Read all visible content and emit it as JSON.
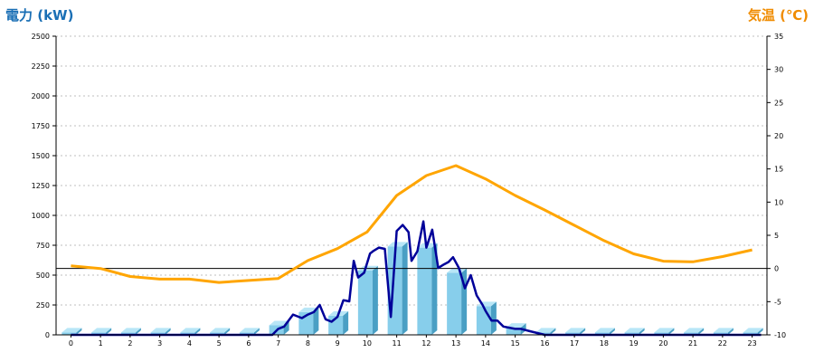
{
  "chart_data": {
    "type": "bar",
    "title": "",
    "ylabel_left": "電力 (kW)",
    "ylabel_right": "気温 (℃)",
    "xlabel": "",
    "categories": [
      "0",
      "1",
      "2",
      "3",
      "4",
      "5",
      "6",
      "7",
      "8",
      "9",
      "10",
      "11",
      "12",
      "13",
      "14",
      "15",
      "16",
      "17",
      "18",
      "19",
      "20",
      "21",
      "22",
      "23"
    ],
    "y_left": {
      "min": 0,
      "max": 2500,
      "ticks": [
        "0",
        "250",
        "500",
        "750",
        "1000",
        "1250",
        "1500",
        "1750",
        "2000",
        "2250",
        "2500"
      ]
    },
    "y_right": {
      "min": -10,
      "max": 35,
      "ticks": [
        "-10",
        "-5",
        "0",
        "5",
        "10",
        "15",
        "20",
        "25",
        "30",
        "35"
      ]
    },
    "grid": "horizontal-dashed",
    "series": [
      {
        "type": "bar",
        "axis": "left",
        "color": "#87ceeb",
        "values": [
          20,
          20,
          20,
          20,
          20,
          20,
          20,
          80,
          190,
          160,
          540,
          740,
          730,
          520,
          240,
          60,
          20,
          20,
          20,
          20,
          20,
          20,
          20,
          20
        ]
      },
      {
        "type": "line",
        "axis": "left",
        "color": "#000099",
        "x": [
          0,
          1,
          2,
          3,
          4,
          5,
          6,
          6.5,
          6.8,
          7,
          7.2,
          7.5,
          7.8,
          8,
          8.2,
          8.4,
          8.6,
          8.8,
          9,
          9.2,
          9.4,
          9.55,
          9.7,
          9.9,
          10.1,
          10.2,
          10.4,
          10.6,
          10.8,
          11,
          11.2,
          11.4,
          11.5,
          11.7,
          11.9,
          12,
          12.2,
          12.4,
          12.6,
          12.75,
          12.9,
          13.1,
          13.3,
          13.5,
          13.7,
          13.9,
          14,
          14.2,
          14.4,
          14.6,
          14.8,
          15,
          15.2,
          15.5,
          16,
          17,
          18,
          19,
          20,
          21,
          22,
          23.3
        ],
        "values": [
          0,
          0,
          0,
          0,
          0,
          0,
          0,
          0,
          0,
          50,
          70,
          170,
          140,
          170,
          190,
          250,
          130,
          110,
          150,
          290,
          280,
          620,
          480,
          520,
          680,
          700,
          730,
          720,
          150,
          870,
          920,
          860,
          620,
          700,
          950,
          730,
          880,
          560,
          590,
          610,
          650,
          560,
          390,
          500,
          330,
          250,
          200,
          120,
          120,
          70,
          60,
          50,
          50,
          30,
          0,
          0,
          0,
          0,
          0,
          0,
          0,
          0
        ]
      },
      {
        "type": "line",
        "axis": "right",
        "color": "#ffa500",
        "values": [
          0.4,
          0,
          -1.2,
          -1.6,
          -1.6,
          -2.1,
          -1.8,
          -1.5,
          1.2,
          3,
          5.5,
          11,
          14,
          15.5,
          13.5,
          11,
          8.8,
          6.5,
          4.2,
          2.2,
          1.1,
          1,
          1.8,
          2.8
        ],
        "x": [
          0,
          1,
          2,
          3,
          4,
          5,
          6,
          7,
          8,
          9,
          10,
          11,
          12,
          13,
          14,
          15,
          16,
          17,
          18,
          19,
          20,
          21,
          22,
          23
        ]
      }
    ]
  }
}
